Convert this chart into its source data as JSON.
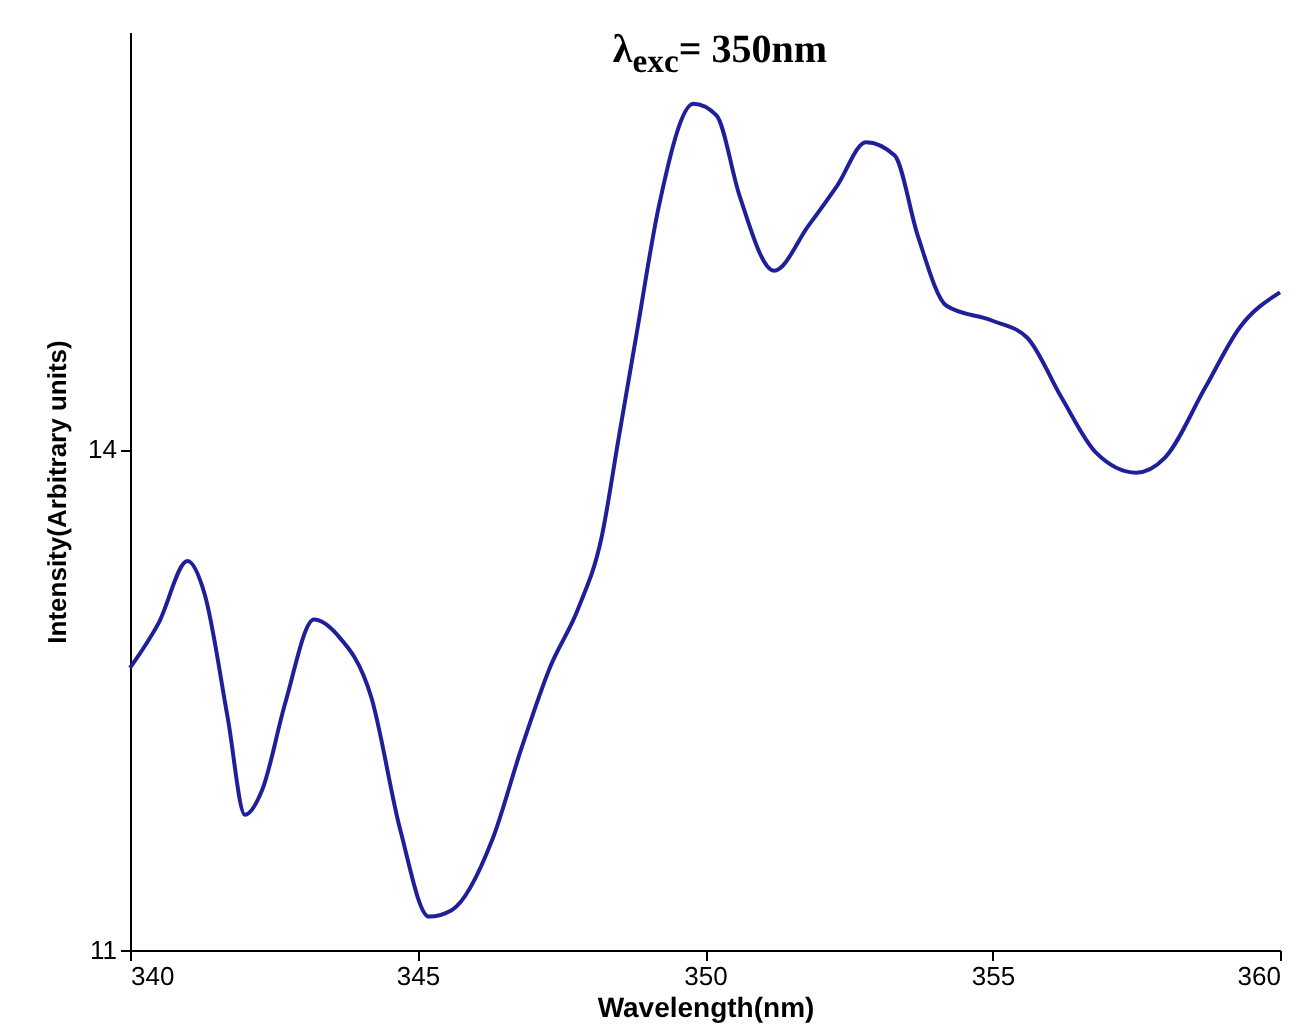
{
  "chart_data": {
    "type": "line",
    "title": "λ$_{exc}$= 350nm",
    "xlabel": "Wavelength(nm)",
    "ylabel": "Intensity(Arbitrary units)",
    "x": [
      340,
      340.5,
      341,
      341.3,
      341.7,
      342,
      342.3,
      342.7,
      343.2,
      343.6,
      344.2,
      344.7,
      345.2,
      345.6,
      346.3,
      346.8,
      347.3,
      347.8,
      348.2,
      348.5,
      348.8,
      349.2,
      349.8,
      350.2,
      350.6,
      351.2,
      351.8,
      352.3,
      352.8,
      353.3,
      353.7,
      354.2,
      355,
      355.6,
      356.2,
      356.8,
      357.5,
      358,
      358.7,
      359.3,
      360
    ],
    "series": [
      {
        "color": "#1f1f99",
        "values": [
          12.69,
          12.96,
          13.33,
          13.13,
          12.39,
          11.81,
          11.96,
          12.48,
          12.98,
          12.89,
          12.51,
          11.72,
          11.2,
          11.24,
          11.66,
          12.2,
          12.69,
          13.05,
          13.47,
          14.07,
          14.67,
          15.46,
          16.07,
          16.0,
          15.52,
          15.07,
          15.34,
          15.58,
          15.84,
          15.76,
          15.28,
          14.86,
          14.77,
          14.67,
          14.31,
          13.98,
          13.86,
          13.95,
          14.37,
          14.73,
          14.94
        ]
      }
    ],
    "xlim": [
      340,
      360
    ],
    "xticks": [
      340,
      345,
      350,
      355,
      360
    ],
    "ylim": [
      11,
      16.5
    ],
    "yticks": [
      11,
      14
    ],
    "grid": false,
    "marker": "none",
    "line_style": "solid"
  }
}
